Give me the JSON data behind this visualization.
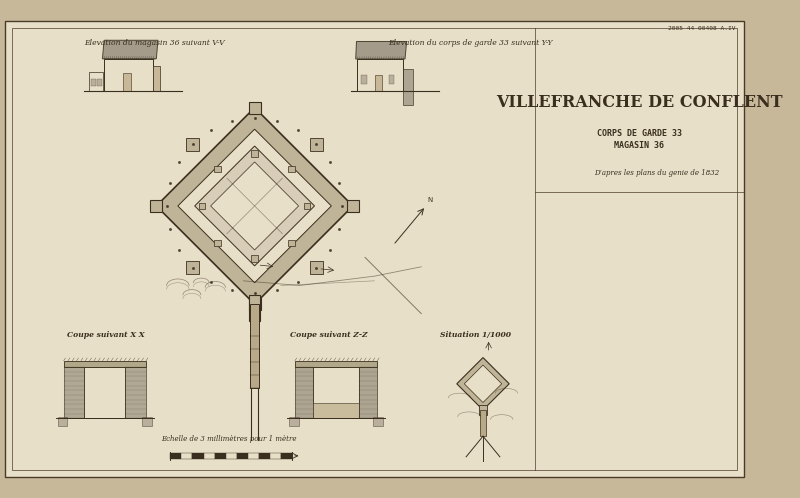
{
  "bg_outer": "#c8b89a",
  "paper_color": "#e8dfc8",
  "border_color": "#4a3a28",
  "ink_color": "#3a2e1e",
  "gray_fill": "#9a9080",
  "tan_fill": "#c8b898",
  "title": "VILLEFRANCHE DE CONFLENT",
  "subtitle1": "CORPS DE GARDE 33",
  "subtitle2": "MAGASIN 36",
  "subtitle3": "D’apres les plans du genie de 1832",
  "label_elev1": "Elevation du magasin 36 suivant V-V",
  "label_elev2": "Elevation du corps de garde 33 suivant Y-Y",
  "label_coupe1": "Coupe suivant X X",
  "label_coupe2": "Coupe suivant Z-Z",
  "label_situ": "Situation 1/1000",
  "label_echelle": "Echelle de 3 millimètres pour 1 mètre",
  "archive_ref": "2005 44 00408 A.IV"
}
